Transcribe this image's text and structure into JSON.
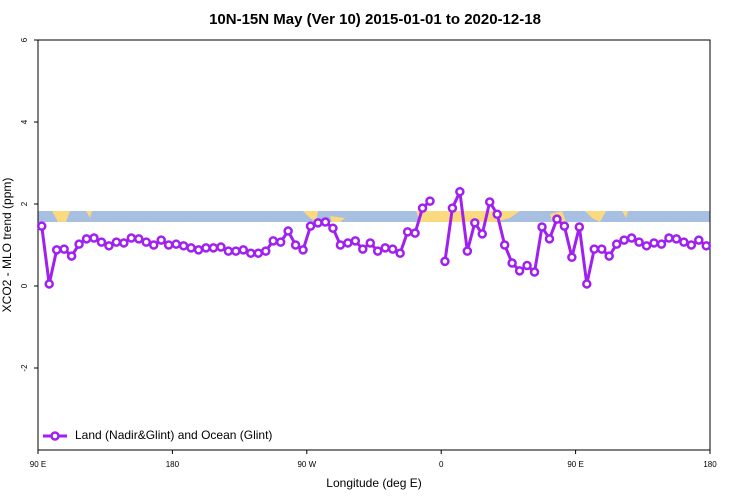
{
  "chart_data": {
    "type": "line",
    "title": "10N-15N May (Ver 10)   2015-01-01 to 2020-12-18",
    "xlabel": "Longitude (deg E)",
    "ylabel": "XCO2 - MLO trend (ppm)",
    "x": [
      92.5,
      97.5,
      102.5,
      107.5,
      112.5,
      117.5,
      122.5,
      127.5,
      132.5,
      137.5,
      142.5,
      147.5,
      152.5,
      157.5,
      162.5,
      167.5,
      172.5,
      177.5,
      182.5,
      187.5,
      192.5,
      197.5,
      202.5,
      207.5,
      212.5,
      217.5,
      222.5,
      227.5,
      232.5,
      237.5,
      242.5,
      247.5,
      252.5,
      257.5,
      262.5,
      267.5,
      272.5,
      277.5,
      282.5,
      287.5,
      292.5,
      297.5,
      302.5,
      307.5,
      312.5,
      317.5,
      322.5,
      327.5,
      332.5,
      337.5,
      342.5,
      347.5,
      352.5,
      357.5,
      362.5,
      367.5,
      372.5,
      377.5,
      382.5,
      387.5,
      392.5,
      397.5,
      402.5,
      407.5,
      412.5,
      417.5,
      422.5,
      427.5,
      432.5,
      437.5,
      442.5,
      447.5,
      452.5,
      457.5,
      462.5,
      467.5,
      472.5,
      477.5,
      482.5,
      487.5,
      492.5,
      497.5,
      502.5,
      507.5,
      512.5,
      517.5,
      522.5,
      527.5,
      532.5,
      537.5
    ],
    "series": [
      {
        "name": "Land (Nadir&Glint) and Ocean (Glint)",
        "color": "#a020f0",
        "values": [
          1.46,
          0.05,
          0.88,
          0.9,
          0.73,
          1.02,
          1.15,
          1.17,
          1.07,
          0.98,
          1.07,
          1.05,
          1.17,
          1.15,
          1.07,
          1.0,
          1.12,
          1.0,
          1.02,
          0.98,
          0.93,
          0.88,
          0.93,
          0.93,
          0.95,
          0.85,
          0.85,
          0.88,
          0.8,
          0.8,
          0.85,
          1.1,
          1.07,
          1.34,
          1.0,
          0.88,
          1.46,
          1.54,
          1.56,
          1.41,
          1.0,
          1.05,
          1.1,
          0.9,
          1.05,
          0.85,
          0.93,
          0.9,
          0.8,
          1.32,
          1.29,
          1.9,
          2.07,
          null,
          0.6,
          1.9,
          2.3,
          0.85,
          1.54,
          1.27,
          2.05,
          1.75,
          1.0,
          0.56,
          0.37,
          0.5,
          0.34,
          1.44,
          1.15,
          1.63,
          1.46,
          0.7,
          1.44,
          0.05,
          0.9,
          0.9,
          0.73,
          1.02,
          1.12,
          1.17,
          1.07,
          0.98,
          1.05,
          1.02,
          1.17,
          1.15,
          1.07,
          1.0,
          1.12,
          0.98
        ]
      }
    ],
    "xlim": [
      90,
      540
    ],
    "xticks": [
      {
        "value": 90,
        "label": "90 E"
      },
      {
        "value": 180,
        "label": "180"
      },
      {
        "value": 270,
        "label": "90 W"
      },
      {
        "value": 360,
        "label": "0"
      },
      {
        "value": 450,
        "label": "90 E"
      },
      {
        "value": 540,
        "label": "180"
      }
    ],
    "ylim": [
      -4,
      6
    ],
    "yticks": [
      -2,
      0,
      2,
      4,
      6
    ],
    "legend": "bottomleft"
  }
}
